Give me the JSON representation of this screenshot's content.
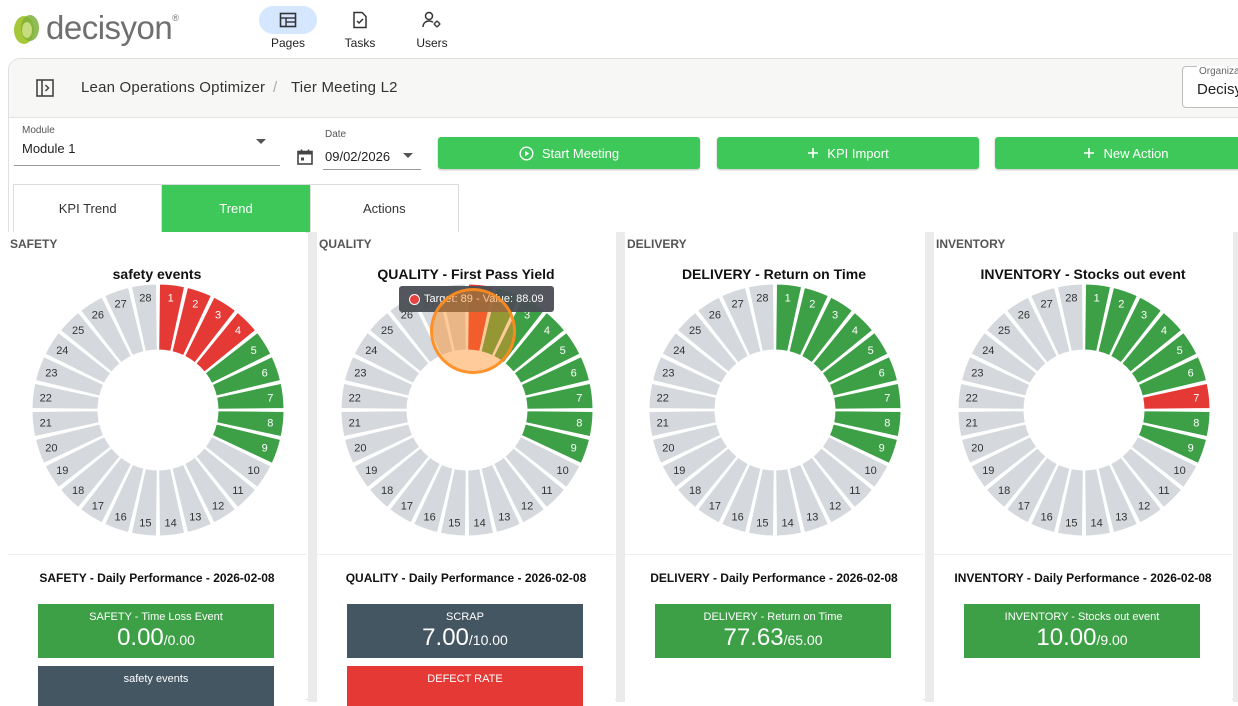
{
  "app": {
    "logo_text": "decisyon",
    "nav": [
      {
        "label": "Pages",
        "icon": "pages-icon",
        "active": true
      },
      {
        "label": "Tasks",
        "icon": "tasks-icon",
        "active": false
      },
      {
        "label": "Users",
        "icon": "users-icon",
        "active": false
      }
    ]
  },
  "breadcrumb": {
    "items": [
      "Lean Operations Optimizer",
      "Tier Meeting L2"
    ],
    "separator": "/"
  },
  "organization": {
    "label": "Organiza",
    "value": "Decisy"
  },
  "filters": {
    "module_label": "Module",
    "module_value": "Module 1",
    "date_label": "Date",
    "date_value": "09/02/2026"
  },
  "buttons": {
    "start_meeting": "Start Meeting",
    "kpi_import": "KPI Import",
    "new_action": "New Action"
  },
  "tabs": [
    {
      "label": "KPI Trend",
      "active": false
    },
    {
      "label": "Trend",
      "active": true
    },
    {
      "label": "Actions",
      "active": false
    }
  ],
  "colors": {
    "green": "#3da046",
    "red": "#e53935",
    "gray": "#d5d9dd",
    "accent": "#3fc85a"
  },
  "tooltip": {
    "text": "Target: 89 - Value: 88.09"
  },
  "sections": [
    {
      "section": "SAFETY",
      "chart_title": "safety events",
      "chart_data": {
        "type": "donut-calendar",
        "days": 28,
        "segments": [
          "R",
          "R",
          "R",
          "R",
          "G",
          "G",
          "G",
          "G",
          "G",
          "X",
          "X",
          "X",
          "X",
          "X",
          "X",
          "X",
          "X",
          "X",
          "X",
          "X",
          "X",
          "X",
          "X",
          "X",
          "X",
          "X",
          "X",
          "X"
        ]
      },
      "perf_title": "SAFETY - Daily Performance - 2026-02-08",
      "cards": [
        {
          "title": "SAFETY - Time Loss Event",
          "value": "0.00",
          "target": "/0.00",
          "color": "green"
        },
        {
          "title": "safety events",
          "value": "",
          "target": "",
          "color": "gray"
        }
      ]
    },
    {
      "section": "QUALITY",
      "chart_title": "QUALITY - First Pass Yield",
      "chart_data": {
        "type": "donut-calendar",
        "days": 28,
        "segments": [
          "R",
          "G",
          "G",
          "G",
          "G",
          "G",
          "G",
          "G",
          "G",
          "X",
          "X",
          "X",
          "X",
          "X",
          "X",
          "X",
          "X",
          "X",
          "X",
          "X",
          "X",
          "X",
          "X",
          "X",
          "X",
          "X",
          "X",
          "X"
        ]
      },
      "perf_title": "QUALITY - Daily Performance - 2026-02-08",
      "cards": [
        {
          "title": "SCRAP",
          "value": "7.00",
          "target": "/10.00",
          "color": "gray"
        },
        {
          "title": "DEFECT RATE",
          "value": "",
          "target": "",
          "color": "red"
        }
      ]
    },
    {
      "section": "DELIVERY",
      "chart_title": "DELIVERY - Return on Time",
      "chart_data": {
        "type": "donut-calendar",
        "days": 28,
        "segments": [
          "G",
          "G",
          "G",
          "G",
          "G",
          "G",
          "G",
          "G",
          "G",
          "X",
          "X",
          "X",
          "X",
          "X",
          "X",
          "X",
          "X",
          "X",
          "X",
          "X",
          "X",
          "X",
          "X",
          "X",
          "X",
          "X",
          "X",
          "X"
        ]
      },
      "perf_title": "DELIVERY - Daily Performance - 2026-02-08",
      "cards": [
        {
          "title": "DELIVERY - Return on Time",
          "value": "77.63",
          "target": "/65.00",
          "color": "green"
        }
      ]
    },
    {
      "section": "INVENTORY",
      "chart_title": "INVENTORY - Stocks out event",
      "chart_data": {
        "type": "donut-calendar",
        "days": 28,
        "segments": [
          "G",
          "G",
          "G",
          "G",
          "G",
          "G",
          "R",
          "G",
          "G",
          "X",
          "X",
          "X",
          "X",
          "X",
          "X",
          "X",
          "X",
          "X",
          "X",
          "X",
          "X",
          "X",
          "X",
          "X",
          "X",
          "X",
          "X",
          "X"
        ]
      },
      "perf_title": "INVENTORY - Daily Performance - 2026-02-08",
      "cards": [
        {
          "title": "INVENTORY - Stocks out event",
          "value": "10.00",
          "target": "/9.00",
          "color": "green"
        }
      ]
    }
  ]
}
